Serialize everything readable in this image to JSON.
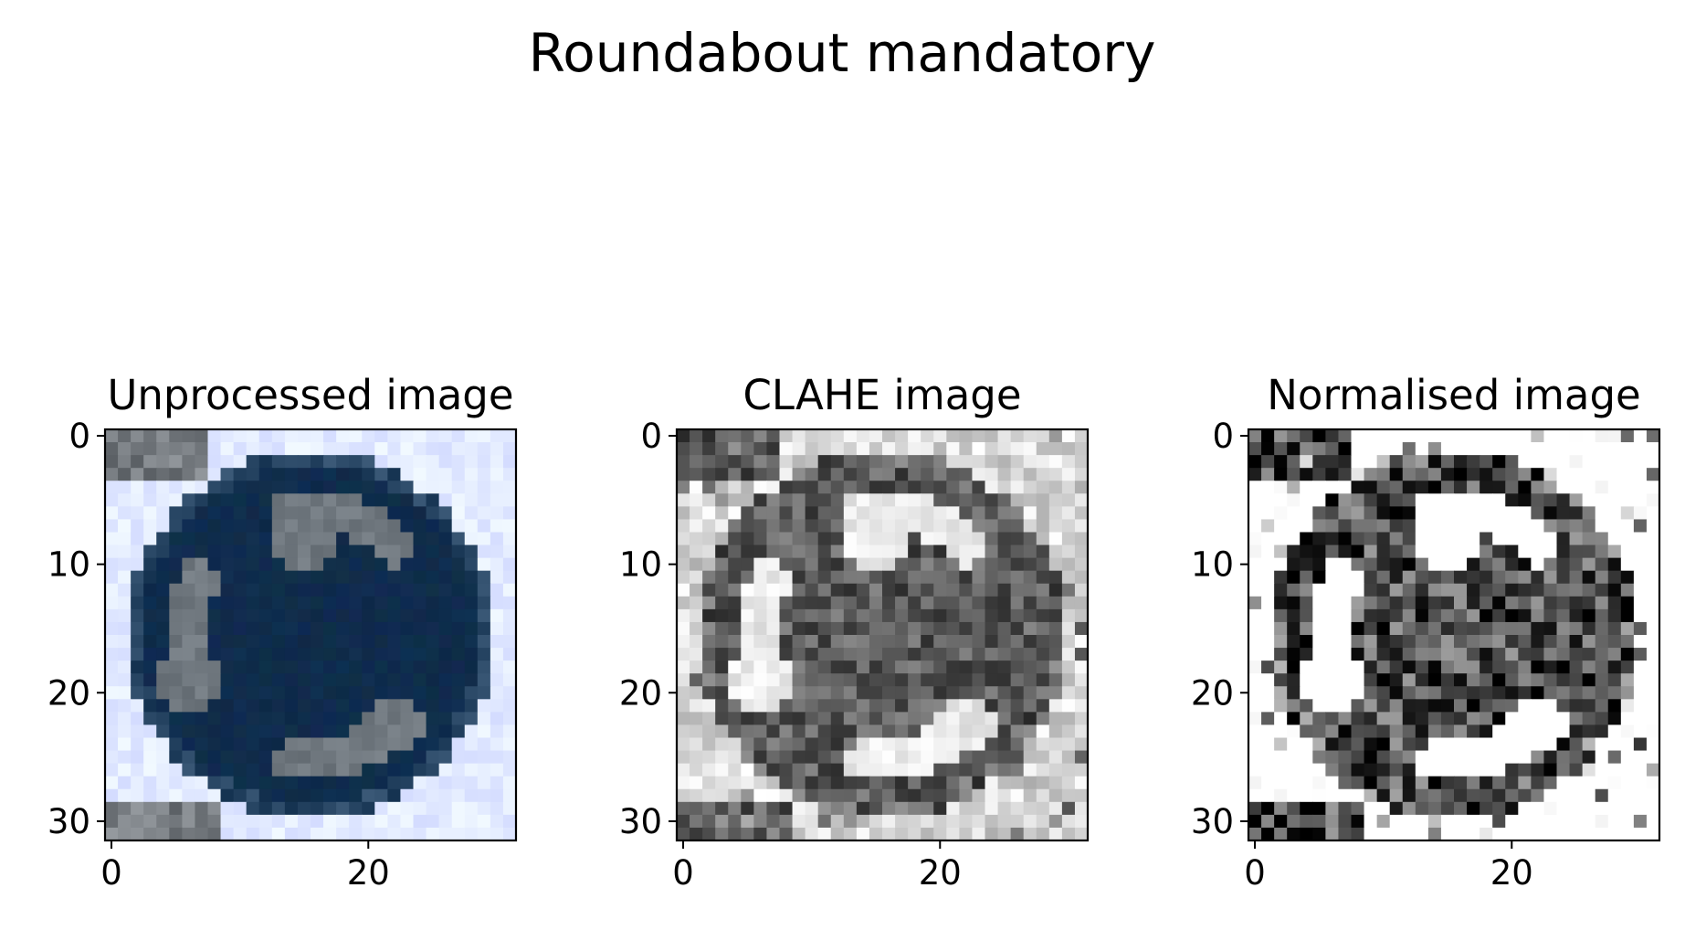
{
  "figure": {
    "title": "Roundabout mandatory"
  },
  "chart_data": [
    {
      "type": "heatmap",
      "title": "Unprocessed image",
      "xlabel": "",
      "ylabel": "",
      "xlim": [
        -0.5,
        31.5
      ],
      "ylim": [
        31.5,
        -0.5
      ],
      "xticks": [
        0,
        20
      ],
      "yticks": [
        0,
        10,
        20,
        30
      ],
      "grid": false,
      "colormap": "rgb",
      "image_size": [
        32,
        32
      ],
      "colors": {
        "sign_blue": "#10304f",
        "arrow_gray": "#6f7a85",
        "background": "#e6eef8"
      }
    },
    {
      "type": "heatmap",
      "title": "CLAHE image",
      "xlabel": "",
      "ylabel": "",
      "xlim": [
        -0.5,
        31.5
      ],
      "ylim": [
        31.5,
        -0.5
      ],
      "xticks": [
        0,
        20
      ],
      "yticks": [
        0,
        10,
        20,
        30
      ],
      "grid": false,
      "colormap": "gray",
      "image_size": [
        32,
        32
      ]
    },
    {
      "type": "heatmap",
      "title": "Normalised image",
      "xlabel": "",
      "ylabel": "",
      "xlim": [
        -0.5,
        31.5
      ],
      "ylim": [
        31.5,
        -0.5
      ],
      "xticks": [
        0,
        20
      ],
      "yticks": [
        0,
        10,
        20,
        30
      ],
      "grid": false,
      "colormap": "gray",
      "image_size": [
        32,
        32
      ]
    }
  ]
}
